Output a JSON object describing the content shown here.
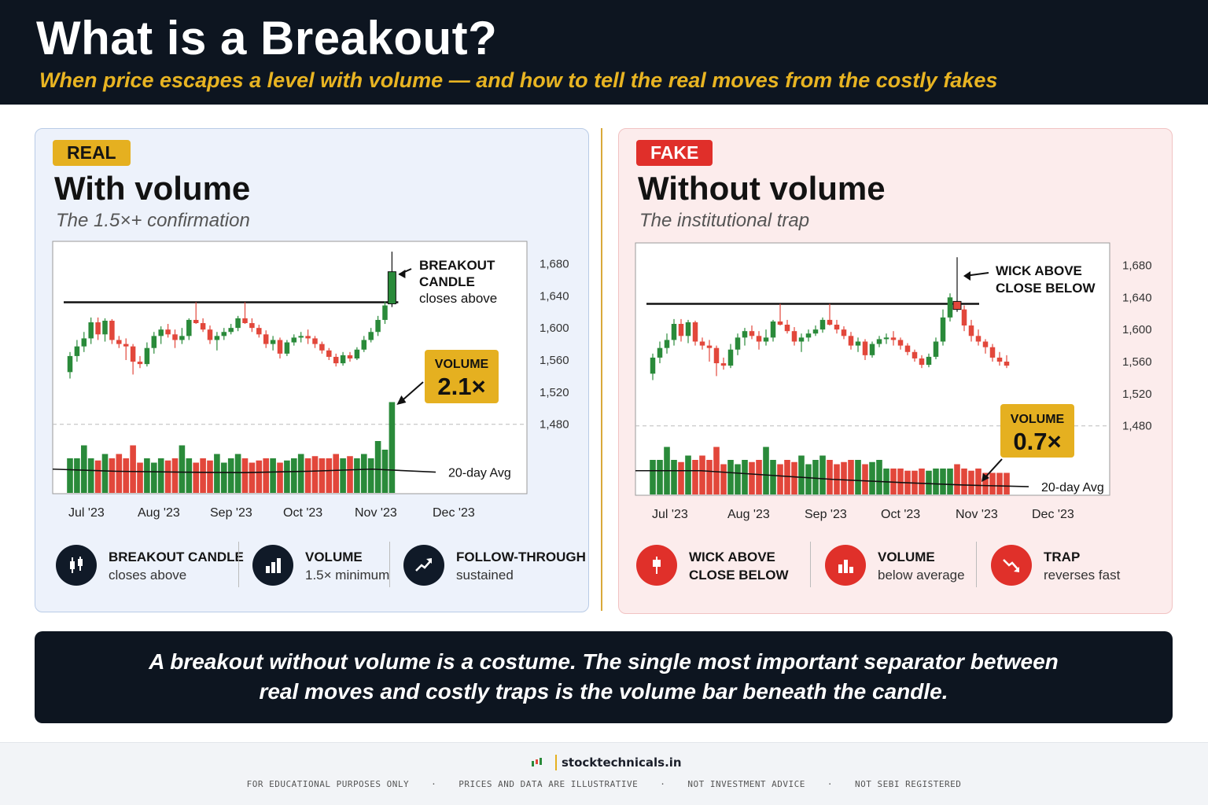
{
  "header": {
    "title": "What is a Breakout?",
    "subtitle": "When price escapes a level with volume — and how to tell the real moves from the costly fakes"
  },
  "real_panel": {
    "badge": "REAL",
    "title": "With volume",
    "subtitle": "The 1.5×+ confirmation",
    "annotation_line1": "BREAKOUT",
    "annotation_line2": "CANDLE",
    "annotation_line3": "closes above",
    "volume_label": "VOLUME",
    "volume_value": "2.1×",
    "avg_label": "20-day Avg",
    "legend": [
      {
        "title": "BREAKOUT CANDLE",
        "desc": "closes above",
        "icon": "candlestick-icon"
      },
      {
        "title": "VOLUME",
        "desc": "1.5× minimum",
        "icon": "bar-chart-icon"
      },
      {
        "title": "FOLLOW-THROUGH",
        "desc": "sustained",
        "icon": "trend-up-icon"
      }
    ]
  },
  "fake_panel": {
    "badge": "FAKE",
    "title": "Without volume",
    "subtitle": "The institutional trap",
    "annotation_line1": "WICK ABOVE",
    "annotation_line2": "CLOSE BELOW",
    "volume_label": "VOLUME",
    "volume_value": "0.7×",
    "avg_label": "20-day Avg",
    "legend": [
      {
        "title": "WICK ABOVE",
        "title2": "CLOSE BELOW",
        "desc": "",
        "icon": "wick-icon"
      },
      {
        "title": "VOLUME",
        "desc": "below average",
        "icon": "bar-chart-down-icon"
      },
      {
        "title": "TRAP",
        "desc": "reverses fast",
        "icon": "trend-down-icon"
      }
    ]
  },
  "banner": {
    "line1": "A breakout without volume is a costume. The single most important separator between",
    "line2": "real moves and costly traps is the volume bar beneath the candle."
  },
  "footer": {
    "brand": "stocktechnicals.in",
    "disclaimers": [
      "FOR EDUCATIONAL PURPOSES ONLY",
      "PRICES AND DATA ARE ILLUSTRATIVE",
      "NOT INVESTMENT ADVICE",
      "NOT SEBI REGISTERED"
    ]
  },
  "colors": {
    "up": "#2a8a3a",
    "down": "#e2473b",
    "accent": "#e5b020",
    "dark": "#0d1520",
    "fake_red": "#e0302a"
  },
  "chart_data": [
    {
      "type": "candlestick",
      "title": "With volume",
      "x_ticks": [
        "Jul '23",
        "Aug '23",
        "Sep '23",
        "Oct '23",
        "Nov '23",
        "Dec '23"
      ],
      "y_ticks": [
        1480,
        1520,
        1560,
        1600,
        1640,
        1680
      ],
      "ylim": [
        1468,
        1700
      ],
      "resistance": 1632,
      "candles": [
        {
          "o": 1545,
          "h": 1570,
          "l": 1537,
          "c": 1565
        },
        {
          "o": 1565,
          "h": 1585,
          "l": 1558,
          "c": 1577
        },
        {
          "o": 1577,
          "h": 1595,
          "l": 1570,
          "c": 1587
        },
        {
          "o": 1587,
          "h": 1613,
          "l": 1580,
          "c": 1607
        },
        {
          "o": 1607,
          "h": 1613,
          "l": 1585,
          "c": 1592
        },
        {
          "o": 1592,
          "h": 1612,
          "l": 1583,
          "c": 1609
        },
        {
          "o": 1609,
          "h": 1611,
          "l": 1580,
          "c": 1585
        },
        {
          "o": 1585,
          "h": 1590,
          "l": 1575,
          "c": 1580
        },
        {
          "o": 1580,
          "h": 1587,
          "l": 1560,
          "c": 1577
        },
        {
          "o": 1577,
          "h": 1580,
          "l": 1542,
          "c": 1558
        },
        {
          "o": 1558,
          "h": 1565,
          "l": 1550,
          "c": 1555
        },
        {
          "o": 1555,
          "h": 1582,
          "l": 1552,
          "c": 1575
        },
        {
          "o": 1575,
          "h": 1595,
          "l": 1568,
          "c": 1590
        },
        {
          "o": 1590,
          "h": 1602,
          "l": 1580,
          "c": 1598
        },
        {
          "o": 1598,
          "h": 1605,
          "l": 1588,
          "c": 1592
        },
        {
          "o": 1592,
          "h": 1598,
          "l": 1575,
          "c": 1585
        },
        {
          "o": 1585,
          "h": 1600,
          "l": 1580,
          "c": 1590
        },
        {
          "o": 1590,
          "h": 1612,
          "l": 1585,
          "c": 1610
        },
        {
          "o": 1610,
          "h": 1632,
          "l": 1605,
          "c": 1606
        },
        {
          "o": 1606,
          "h": 1612,
          "l": 1595,
          "c": 1598
        },
        {
          "o": 1598,
          "h": 1603,
          "l": 1580,
          "c": 1585
        },
        {
          "o": 1585,
          "h": 1595,
          "l": 1572,
          "c": 1590
        },
        {
          "o": 1590,
          "h": 1600,
          "l": 1585,
          "c": 1595
        },
        {
          "o": 1595,
          "h": 1605,
          "l": 1592,
          "c": 1600
        },
        {
          "o": 1600,
          "h": 1615,
          "l": 1596,
          "c": 1612
        },
        {
          "o": 1612,
          "h": 1632,
          "l": 1605,
          "c": 1606
        },
        {
          "o": 1606,
          "h": 1612,
          "l": 1595,
          "c": 1600
        },
        {
          "o": 1600,
          "h": 1604,
          "l": 1588,
          "c": 1592
        },
        {
          "o": 1592,
          "h": 1597,
          "l": 1575,
          "c": 1580
        },
        {
          "o": 1580,
          "h": 1590,
          "l": 1572,
          "c": 1585
        },
        {
          "o": 1585,
          "h": 1588,
          "l": 1562,
          "c": 1568
        },
        {
          "o": 1568,
          "h": 1585,
          "l": 1565,
          "c": 1582
        },
        {
          "o": 1582,
          "h": 1592,
          "l": 1578,
          "c": 1588
        },
        {
          "o": 1588,
          "h": 1595,
          "l": 1582,
          "c": 1590
        },
        {
          "o": 1590,
          "h": 1598,
          "l": 1580,
          "c": 1587
        },
        {
          "o": 1587,
          "h": 1590,
          "l": 1575,
          "c": 1580
        },
        {
          "o": 1580,
          "h": 1583,
          "l": 1568,
          "c": 1572
        },
        {
          "o": 1572,
          "h": 1575,
          "l": 1560,
          "c": 1564
        },
        {
          "o": 1564,
          "h": 1568,
          "l": 1552,
          "c": 1556
        },
        {
          "o": 1556,
          "h": 1570,
          "l": 1553,
          "c": 1566
        },
        {
          "o": 1566,
          "h": 1570,
          "l": 1558,
          "c": 1562
        },
        {
          "o": 1562,
          "h": 1576,
          "l": 1560,
          "c": 1573
        },
        {
          "o": 1573,
          "h": 1590,
          "l": 1570,
          "c": 1585
        },
        {
          "o": 1585,
          "h": 1600,
          "l": 1582,
          "c": 1595
        },
        {
          "o": 1595,
          "h": 1615,
          "l": 1590,
          "c": 1610
        },
        {
          "o": 1610,
          "h": 1633,
          "l": 1605,
          "c": 1628
        },
        {
          "o": 1630,
          "h": 1695,
          "l": 1626,
          "c": 1670
        }
      ],
      "volume_up_down": "volume bars colored by candle direction; breakout bar 2.1× the 20-day average",
      "volume_multiple": 2.1,
      "volume_series": [
        0.8,
        0.8,
        1.1,
        0.8,
        0.75,
        0.9,
        0.8,
        0.9,
        0.8,
        1.1,
        0.7,
        0.8,
        0.7,
        0.8,
        0.75,
        0.8,
        1.1,
        0.8,
        0.7,
        0.8,
        0.75,
        0.9,
        0.7,
        0.8,
        0.9,
        0.8,
        0.7,
        0.75,
        0.8,
        0.8,
        0.7,
        0.75,
        0.8,
        0.9,
        0.8,
        0.85,
        0.8,
        0.8,
        0.9,
        0.8,
        0.85,
        0.8,
        0.9,
        0.8,
        1.2,
        1.0,
        2.1
      ],
      "series": [
        {
          "name": "20-day Avg"
        }
      ]
    },
    {
      "type": "candlestick",
      "title": "Without volume",
      "x_ticks": [
        "Jul '23",
        "Aug '23",
        "Sep '23",
        "Oct '23",
        "Nov '23",
        "Dec '23"
      ],
      "y_ticks": [
        1480,
        1520,
        1560,
        1600,
        1640,
        1680
      ],
      "ylim": [
        1468,
        1700
      ],
      "resistance": 1632,
      "candles": [
        {
          "o": 1545,
          "h": 1570,
          "l": 1537,
          "c": 1565
        },
        {
          "o": 1565,
          "h": 1585,
          "l": 1558,
          "c": 1577
        },
        {
          "o": 1577,
          "h": 1595,
          "l": 1570,
          "c": 1587
        },
        {
          "o": 1587,
          "h": 1613,
          "l": 1580,
          "c": 1607
        },
        {
          "o": 1607,
          "h": 1613,
          "l": 1585,
          "c": 1592
        },
        {
          "o": 1592,
          "h": 1612,
          "l": 1583,
          "c": 1609
        },
        {
          "o": 1609,
          "h": 1611,
          "l": 1580,
          "c": 1585
        },
        {
          "o": 1585,
          "h": 1590,
          "l": 1575,
          "c": 1580
        },
        {
          "o": 1580,
          "h": 1587,
          "l": 1560,
          "c": 1577
        },
        {
          "o": 1577,
          "h": 1580,
          "l": 1542,
          "c": 1558
        },
        {
          "o": 1558,
          "h": 1565,
          "l": 1550,
          "c": 1555
        },
        {
          "o": 1555,
          "h": 1582,
          "l": 1552,
          "c": 1575
        },
        {
          "o": 1575,
          "h": 1595,
          "l": 1568,
          "c": 1590
        },
        {
          "o": 1590,
          "h": 1602,
          "l": 1580,
          "c": 1598
        },
        {
          "o": 1598,
          "h": 1605,
          "l": 1588,
          "c": 1592
        },
        {
          "o": 1592,
          "h": 1598,
          "l": 1575,
          "c": 1585
        },
        {
          "o": 1585,
          "h": 1600,
          "l": 1580,
          "c": 1590
        },
        {
          "o": 1590,
          "h": 1612,
          "l": 1585,
          "c": 1610
        },
        {
          "o": 1610,
          "h": 1632,
          "l": 1605,
          "c": 1606
        },
        {
          "o": 1606,
          "h": 1612,
          "l": 1595,
          "c": 1598
        },
        {
          "o": 1598,
          "h": 1603,
          "l": 1580,
          "c": 1585
        },
        {
          "o": 1585,
          "h": 1595,
          "l": 1572,
          "c": 1590
        },
        {
          "o": 1590,
          "h": 1600,
          "l": 1585,
          "c": 1595
        },
        {
          "o": 1595,
          "h": 1605,
          "l": 1592,
          "c": 1600
        },
        {
          "o": 1600,
          "h": 1615,
          "l": 1596,
          "c": 1612
        },
        {
          "o": 1612,
          "h": 1632,
          "l": 1605,
          "c": 1606
        },
        {
          "o": 1606,
          "h": 1612,
          "l": 1595,
          "c": 1600
        },
        {
          "o": 1600,
          "h": 1604,
          "l": 1588,
          "c": 1592
        },
        {
          "o": 1592,
          "h": 1597,
          "l": 1575,
          "c": 1580
        },
        {
          "o": 1580,
          "h": 1590,
          "l": 1572,
          "c": 1585
        },
        {
          "o": 1585,
          "h": 1588,
          "l": 1562,
          "c": 1568
        },
        {
          "o": 1568,
          "h": 1585,
          "l": 1565,
          "c": 1582
        },
        {
          "o": 1582,
          "h": 1592,
          "l": 1578,
          "c": 1588
        },
        {
          "o": 1588,
          "h": 1595,
          "l": 1582,
          "c": 1590
        },
        {
          "o": 1590,
          "h": 1598,
          "l": 1580,
          "c": 1587
        },
        {
          "o": 1587,
          "h": 1590,
          "l": 1575,
          "c": 1580
        },
        {
          "o": 1580,
          "h": 1583,
          "l": 1568,
          "c": 1572
        },
        {
          "o": 1572,
          "h": 1575,
          "l": 1560,
          "c": 1564
        },
        {
          "o": 1564,
          "h": 1568,
          "l": 1552,
          "c": 1556
        },
        {
          "o": 1556,
          "h": 1570,
          "l": 1553,
          "c": 1566
        },
        {
          "o": 1566,
          "h": 1590,
          "l": 1563,
          "c": 1585
        },
        {
          "o": 1585,
          "h": 1625,
          "l": 1580,
          "c": 1615
        },
        {
          "o": 1615,
          "h": 1645,
          "l": 1610,
          "c": 1640
        },
        {
          "o": 1635,
          "h": 1690,
          "l": 1622,
          "c": 1625
        },
        {
          "o": 1625,
          "h": 1630,
          "l": 1598,
          "c": 1605
        },
        {
          "o": 1605,
          "h": 1612,
          "l": 1585,
          "c": 1592
        },
        {
          "o": 1592,
          "h": 1600,
          "l": 1580,
          "c": 1585
        },
        {
          "o": 1585,
          "h": 1588,
          "l": 1570,
          "c": 1578
        },
        {
          "o": 1578,
          "h": 1582,
          "l": 1560,
          "c": 1565
        },
        {
          "o": 1565,
          "h": 1572,
          "l": 1555,
          "c": 1560
        },
        {
          "o": 1560,
          "h": 1568,
          "l": 1552,
          "c": 1555
        }
      ],
      "volume_multiple": 0.7,
      "volume_series": [
        0.8,
        0.8,
        1.1,
        0.8,
        0.75,
        0.9,
        0.8,
        0.9,
        0.8,
        1.1,
        0.7,
        0.8,
        0.7,
        0.8,
        0.75,
        0.8,
        1.1,
        0.8,
        0.7,
        0.8,
        0.75,
        0.9,
        0.7,
        0.8,
        0.9,
        0.8,
        0.7,
        0.75,
        0.8,
        0.8,
        0.7,
        0.75,
        0.8,
        0.6,
        0.6,
        0.6,
        0.55,
        0.55,
        0.6,
        0.55,
        0.6,
        0.6,
        0.6,
        0.7,
        0.6,
        0.55,
        0.6,
        0.5,
        0.5,
        0.5,
        0.5
      ],
      "series": [
        {
          "name": "20-day Avg"
        }
      ]
    }
  ]
}
